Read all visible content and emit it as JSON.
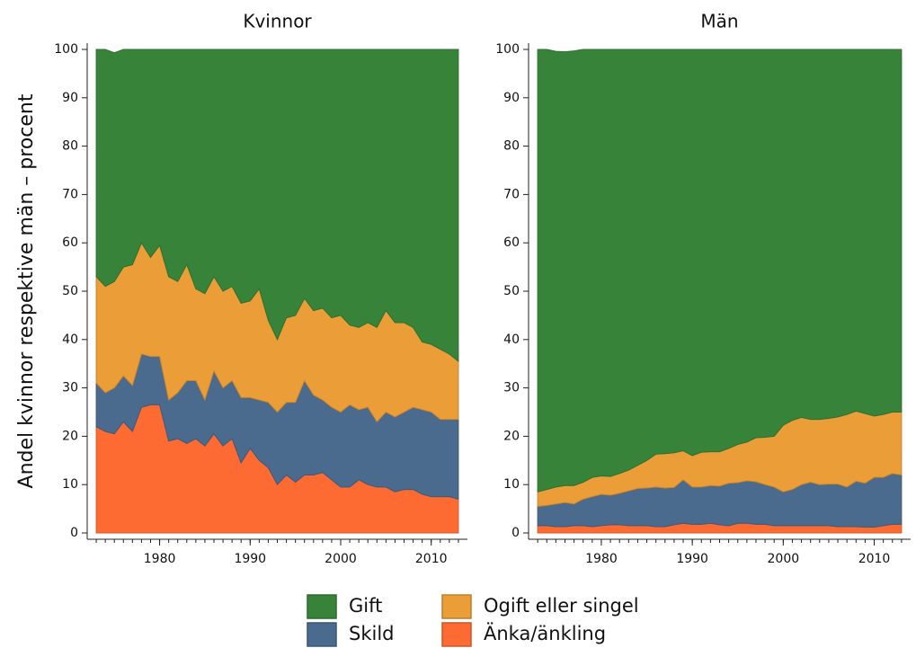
{
  "chart_data": [
    {
      "type": "area",
      "title": "Kvinnor",
      "ylabel": "Andel kvinnor respektive män – procent",
      "x": [
        1973,
        1974,
        1975,
        1976,
        1977,
        1978,
        1979,
        1980,
        1981,
        1982,
        1983,
        1984,
        1985,
        1986,
        1987,
        1988,
        1989,
        1990,
        1991,
        1992,
        1993,
        1994,
        1995,
        1996,
        1997,
        1998,
        1999,
        2000,
        2001,
        2002,
        2003,
        2004,
        2005,
        2006,
        2007,
        2008,
        2009,
        2010,
        2011,
        2012,
        2013
      ],
      "xlim": [
        1972,
        2014
      ],
      "xticks": [
        1980,
        1990,
        2000,
        2010
      ],
      "ylim": [
        -1.3,
        101.3
      ],
      "yticks": [
        0,
        10,
        20,
        30,
        40,
        50,
        60,
        70,
        80,
        90,
        100
      ],
      "stacked": true,
      "series": [
        {
          "name": "Änka/änkling",
          "color": "#fd6b33",
          "values": [
            22,
            21,
            20.5,
            23,
            21,
            26,
            26.5,
            26.5,
            19,
            19.5,
            18.5,
            19.5,
            18,
            20.5,
            18,
            19.5,
            14.5,
            17.5,
            15,
            13.5,
            10,
            12,
            10.5,
            12,
            12,
            12.5,
            11,
            9.5,
            9.5,
            11,
            10,
            9.5,
            9.5,
            8.5,
            9,
            9,
            8,
            7.5,
            7.5,
            7.5,
            7
          ]
        },
        {
          "name": "Skild",
          "color": "#4a6a8e",
          "values": [
            9,
            8,
            9.5,
            9.5,
            9.5,
            11,
            10,
            10,
            8.5,
            9.5,
            13,
            12,
            9.5,
            13,
            12,
            12,
            13.5,
            10.5,
            12.5,
            13.5,
            15,
            15,
            16.5,
            19.5,
            16.5,
            15,
            15,
            15.5,
            17,
            14.5,
            16,
            13.5,
            15.5,
            15.5,
            16,
            17,
            17.5,
            17.5,
            16,
            16,
            16.5
          ]
        },
        {
          "name": "Ogift eller singel",
          "color": "#eb9d37",
          "values": [
            22,
            22,
            22,
            22.5,
            25,
            23,
            20.5,
            23,
            25.5,
            23,
            24,
            19,
            22,
            19.5,
            20,
            19.5,
            19.5,
            20,
            23,
            17,
            15,
            17.5,
            18,
            17,
            17.5,
            19,
            18.5,
            20,
            16.5,
            17,
            17.5,
            19.5,
            21,
            19.5,
            18.5,
            16.5,
            14,
            14,
            14.5,
            13.5,
            12
          ]
        },
        {
          "name": "Gift",
          "color": "#38833a",
          "values": [
            47,
            49,
            47.3,
            45,
            44.5,
            40,
            43,
            40.5,
            47,
            48,
            44.5,
            49.5,
            50.5,
            47,
            50,
            49,
            52.5,
            52,
            49.5,
            56,
            60,
            55.5,
            55,
            51.5,
            54,
            53.5,
            55.5,
            55,
            57,
            57.5,
            56.5,
            57.5,
            54,
            56.5,
            56.5,
            57.5,
            60.5,
            61,
            62,
            63,
            64.5
          ]
        }
      ]
    },
    {
      "type": "area",
      "title": "Män",
      "x": [
        1973,
        1974,
        1975,
        1976,
        1977,
        1978,
        1979,
        1980,
        1981,
        1982,
        1983,
        1984,
        1985,
        1986,
        1987,
        1988,
        1989,
        1990,
        1991,
        1992,
        1993,
        1994,
        1995,
        1996,
        1997,
        1998,
        1999,
        2000,
        2001,
        2002,
        2003,
        2004,
        2005,
        2006,
        2007,
        2008,
        2009,
        2010,
        2011,
        2012,
        2013
      ],
      "xlim": [
        1972,
        2014
      ],
      "xticks": [
        1980,
        1990,
        2000,
        2010
      ],
      "ylim": [
        -1.3,
        101.3
      ],
      "yticks": [
        0,
        10,
        20,
        30,
        40,
        50,
        60,
        70,
        80,
        90,
        100
      ],
      "stacked": true,
      "series": [
        {
          "name": "Änka/änkling",
          "color": "#fd6b33",
          "values": [
            1.5,
            1.5,
            1.3,
            1.3,
            1.5,
            1.5,
            1.3,
            1.5,
            1.7,
            1.7,
            1.5,
            1.5,
            1.5,
            1.3,
            1.3,
            1.7,
            2,
            1.8,
            1.8,
            2,
            1.7,
            1.5,
            2,
            2,
            1.8,
            1.8,
            1.5,
            1.5,
            1.5,
            1.5,
            1.5,
            1.5,
            1.5,
            1.3,
            1.3,
            1.3,
            1.2,
            1.2,
            1.5,
            1.8,
            1.8
          ]
        },
        {
          "name": "Skild",
          "color": "#4a6a8e",
          "values": [
            4,
            4.2,
            4.7,
            5,
            4.5,
            5.5,
            6.2,
            6.5,
            6.1,
            6.5,
            7.2,
            7.7,
            7.8,
            8.2,
            8,
            7.7,
            9,
            7.7,
            7.7,
            7.8,
            8,
            8.8,
            8.4,
            8.8,
            8.8,
            8.2,
            8,
            7,
            7.5,
            8.5,
            9,
            8.5,
            8.6,
            8.8,
            8.2,
            9.4,
            9.1,
            10.3,
            10,
            10.5,
            10.2
          ]
        },
        {
          "name": "Ogift eller singel",
          "color": "#eb9d37",
          "values": [
            3,
            3.3,
            3.5,
            3.5,
            3.8,
            3.5,
            4,
            3.8,
            3.9,
            4.1,
            4.3,
            4.8,
            5.7,
            6.8,
            7.1,
            7.2,
            6,
            6.5,
            7.2,
            7,
            7.1,
            7.2,
            7.9,
            8,
            9.1,
            9.8,
            10.5,
            13.8,
            14.3,
            13.9,
            13,
            13.5,
            13.6,
            13.9,
            15,
            14.5,
            14.4,
            12.7,
            13,
            12.7,
            13
          ]
        },
        {
          "name": "Gift",
          "color": "#38833a",
          "values": [
            91.5,
            91,
            90.1,
            89.7,
            89.9,
            89.5,
            88.5,
            88.2,
            88.3,
            87.7,
            87,
            86,
            85,
            83.7,
            83.6,
            83.4,
            83,
            84,
            83.3,
            83.2,
            83.2,
            82.5,
            81.7,
            81.2,
            80.3,
            80.2,
            80,
            77.7,
            76.7,
            76.1,
            76.5,
            76.5,
            76.3,
            76,
            75.5,
            74.8,
            75.3,
            75.8,
            75.5,
            75,
            75
          ]
        }
      ]
    }
  ]
}
